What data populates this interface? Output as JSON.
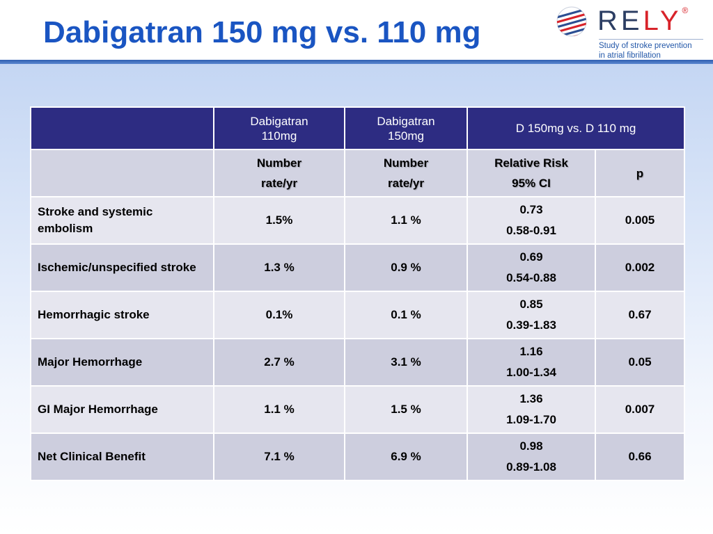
{
  "slide": {
    "title": "Dabigatran 150 mg vs. 110 mg"
  },
  "logo": {
    "word_re": "RE",
    "word_ly": "LY",
    "reg": "®",
    "tagline_1": "Study of stroke prevention",
    "tagline_2": "in atrial fibrillation"
  },
  "table": {
    "header": {
      "blank": "",
      "col1_line1": "Dabigatran",
      "col1_line2": "110mg",
      "col2_line1": "Dabigatran",
      "col2_line2": "150mg",
      "comparison": "D 150mg vs. D 110 mg"
    },
    "subheader": {
      "blank": "",
      "col1_line1": "Number",
      "col1_line2": "rate/yr",
      "col2_line1": "Number",
      "col2_line2": "rate/yr",
      "rr_line1": "Relative Risk",
      "rr_line2": "95% CI",
      "p": "p"
    },
    "rows": [
      {
        "label": "Stroke and systemic embolism",
        "d110": "1.5%",
        "d150": "1.1 %",
        "rr": "0.73",
        "ci": "0.58-0.91",
        "p": "0.005"
      },
      {
        "label": "Ischemic/unspecified stroke",
        "d110": "1.3 %",
        "d150": "0.9 %",
        "rr": "0.69",
        "ci": "0.54-0.88",
        "p": "0.002"
      },
      {
        "label": "Hemorrhagic stroke",
        "d110": "0.1%",
        "d150": "0.1 %",
        "rr": "0.85",
        "ci": "0.39-1.83",
        "p": "0.67"
      },
      {
        "label": "Major Hemorrhage",
        "d110": "2.7 %",
        "d150": "3.1 %",
        "rr": "1.16",
        "ci": "1.00-1.34",
        "p": "0.05"
      },
      {
        "label": "GI Major Hemorrhage",
        "d110": "1.1 %",
        "d150": "1.5 %",
        "rr": "1.36",
        "ci": "1.09-1.70",
        "p": "0.007"
      },
      {
        "label": "Net Clinical Benefit",
        "d110": "7.1 %",
        "d150": "6.9 %",
        "rr": "0.98",
        "ci": "0.89-1.08",
        "p": "0.66"
      }
    ]
  }
}
